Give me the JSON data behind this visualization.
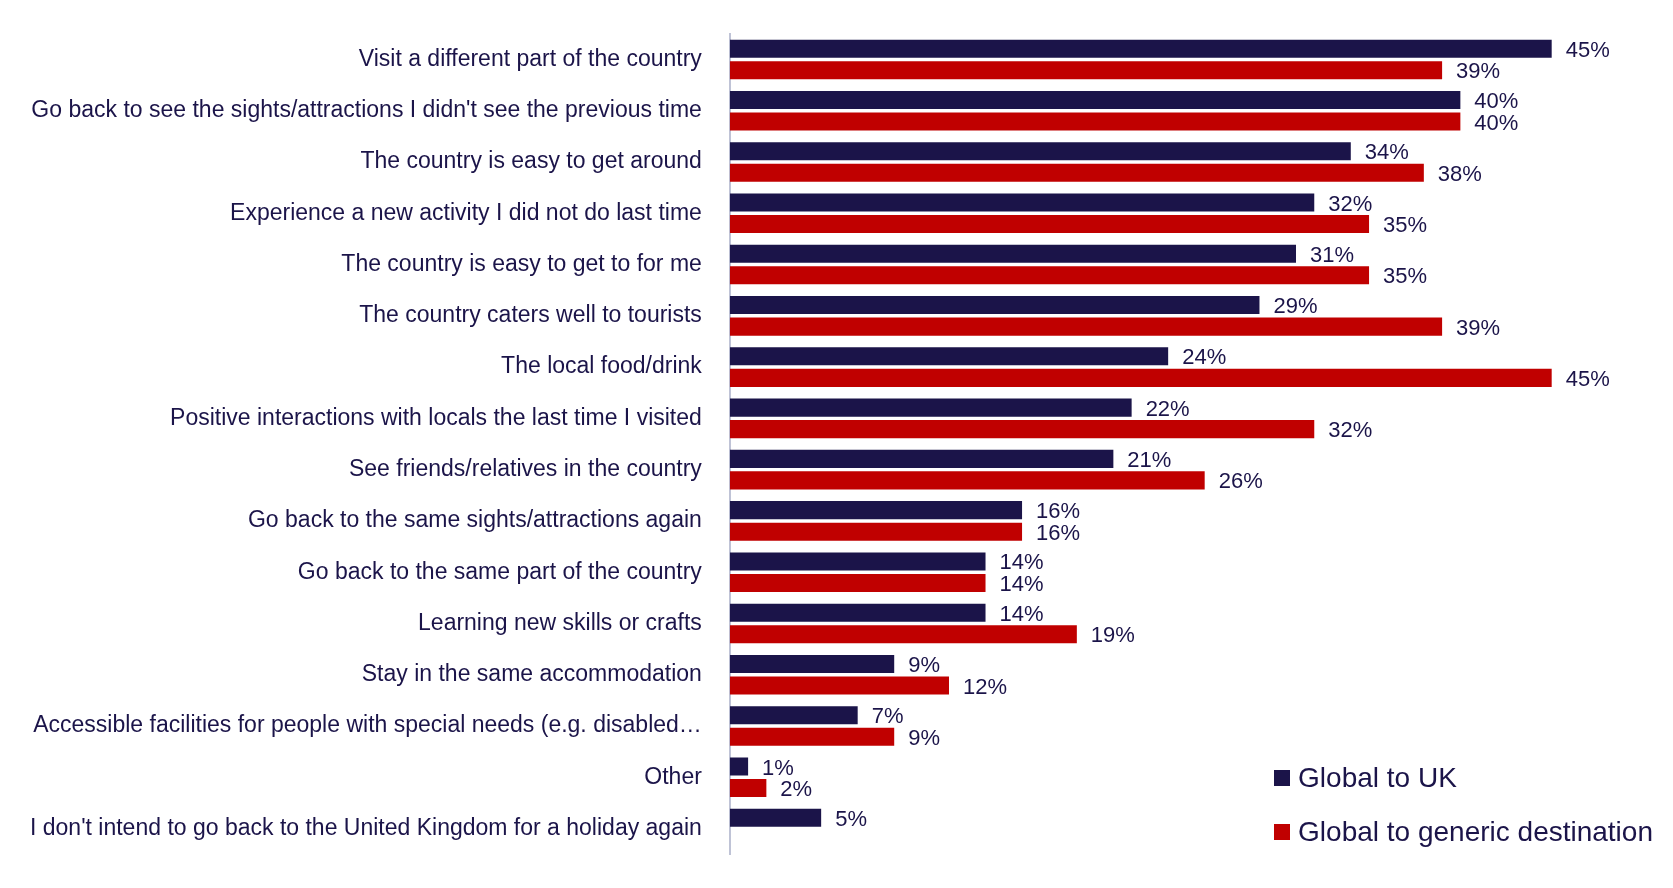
{
  "chart_data": {
    "type": "bar",
    "orientation": "horizontal",
    "tick_labels": "y",
    "legend": "bottom right",
    "categories": [
      "Visit a different part of the country",
      "Go back to see the sights/attractions I didn't see the previous time",
      "The country is easy to get around",
      "Experience a new activity I did not do last time",
      "The country is easy to get to for me",
      "The country caters well to tourists",
      "The local food/drink",
      "Positive interactions with locals the last time I visited",
      "See friends/relatives in the country",
      "Go back to the same sights/attractions again",
      "Go back to the same part of the country",
      "Learning new skills or crafts",
      "Stay in the same accommodation",
      "Accessible facilities for people with special needs (e.g. disabled…",
      "Other",
      "I don't intend to go back to the United Kingdom for a holiday again"
    ],
    "series": [
      {
        "name": "Global to UK",
        "color": "#1b1449",
        "values": [
          45,
          40,
          34,
          32,
          31,
          29,
          24,
          22,
          21,
          16,
          14,
          14,
          9,
          7,
          1,
          5
        ],
        "value_labels": [
          "45%",
          "40%",
          "34%",
          "32%",
          "31%",
          "29%",
          "24%",
          "22%",
          "21%",
          "16%",
          "14%",
          "14%",
          "9%",
          "7%",
          "1%",
          "5%"
        ]
      },
      {
        "name": "Global to generic destination",
        "color": "#c00000",
        "values": [
          39,
          40,
          38,
          35,
          35,
          39,
          45,
          32,
          26,
          16,
          14,
          19,
          12,
          9,
          2,
          null
        ],
        "value_labels": [
          "39%",
          "40%",
          "38%",
          "35%",
          "35%",
          "39%",
          "45%",
          "32%",
          "26%",
          "16%",
          "14%",
          "19%",
          "12%",
          "9%",
          "2%",
          null
        ]
      }
    ]
  }
}
